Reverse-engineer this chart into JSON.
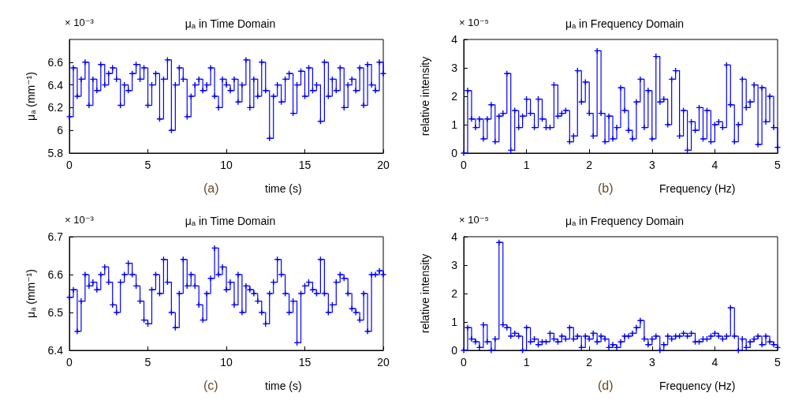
{
  "chart_data": [
    {
      "type": "step",
      "title": "μₐ in Time Domain",
      "xlabel": "time (s)",
      "ylabel": "μₐ (mm⁻¹)",
      "annotations": [
        "× 10⁻³",
        "(a)"
      ],
      "marker": "cross",
      "grid": false,
      "xlim": [
        0,
        20
      ],
      "xticks": [
        0,
        5,
        10,
        15,
        20
      ],
      "ylim": [
        5.8,
        6.8
      ],
      "yticks": [
        5.8,
        6,
        6.2,
        6.4,
        6.6
      ],
      "x": [
        0,
        0.25,
        0.5,
        0.75,
        1,
        1.25,
        1.5,
        1.75,
        2,
        2.25,
        2.5,
        2.75,
        3,
        3.25,
        3.5,
        3.75,
        4,
        4.25,
        4.5,
        4.75,
        5,
        5.25,
        5.5,
        5.75,
        6,
        6.25,
        6.5,
        6.75,
        7,
        7.25,
        7.5,
        7.75,
        8,
        8.25,
        8.5,
        8.75,
        9,
        9.25,
        9.5,
        9.75,
        10,
        10.25,
        10.5,
        10.75,
        11,
        11.25,
        11.5,
        11.75,
        12,
        12.25,
        12.5,
        12.75,
        13,
        13.25,
        13.5,
        13.75,
        14,
        14.25,
        14.5,
        14.75,
        15,
        15.25,
        15.5,
        15.75,
        16,
        16.25,
        16.5,
        16.75,
        17,
        17.25,
        17.5,
        17.75,
        18,
        18.25,
        18.5,
        18.75,
        19,
        19.25,
        19.5,
        19.75,
        20
      ],
      "series": [
        {
          "color": "#0000ff",
          "values": [
            6.12,
            6.55,
            6.3,
            6.45,
            6.6,
            6.22,
            6.45,
            6.35,
            6.58,
            6.4,
            6.5,
            6.55,
            6.45,
            6.22,
            6.4,
            6.35,
            6.5,
            6.58,
            6.45,
            6.55,
            6.22,
            6.4,
            6.5,
            6.1,
            6.45,
            6.62,
            6.0,
            6.4,
            6.55,
            6.45,
            6.12,
            6.3,
            6.4,
            6.45,
            6.35,
            6.4,
            6.55,
            6.3,
            6.2,
            6.45,
            6.4,
            6.35,
            6.45,
            6.25,
            6.4,
            6.62,
            6.2,
            6.45,
            6.3,
            6.6,
            6.35,
            5.93,
            6.3,
            6.4,
            6.25,
            6.45,
            6.5,
            6.15,
            6.4,
            6.52,
            6.3,
            6.55,
            6.35,
            6.4,
            6.08,
            6.6,
            6.3,
            6.45,
            6.35,
            6.55,
            6.2,
            6.4,
            6.45,
            6.35,
            6.55,
            6.22,
            6.58,
            6.4,
            6.35,
            6.6,
            6.5
          ]
        }
      ]
    },
    {
      "type": "step",
      "title": "μₐ in Frequency Domain",
      "xlabel": "Frequency (Hz)",
      "ylabel": "relative intensity",
      "annotations": [
        "× 10⁻⁵",
        "(b)"
      ],
      "marker": "cross",
      "grid": false,
      "xlim": [
        0,
        5
      ],
      "xticks": [
        0,
        1,
        2,
        3,
        4,
        5
      ],
      "ylim": [
        0,
        4
      ],
      "yticks": [
        0,
        1,
        2,
        3,
        4
      ],
      "x": [
        0,
        0.0625,
        0.125,
        0.1875,
        0.25,
        0.3125,
        0.375,
        0.4375,
        0.5,
        0.5625,
        0.625,
        0.6875,
        0.75,
        0.8125,
        0.875,
        0.9375,
        1,
        1.0625,
        1.125,
        1.1875,
        1.25,
        1.3125,
        1.375,
        1.4375,
        1.5,
        1.5625,
        1.625,
        1.6875,
        1.75,
        1.8125,
        1.875,
        1.9375,
        2,
        2.0625,
        2.125,
        2.1875,
        2.25,
        2.3125,
        2.375,
        2.4375,
        2.5,
        2.5625,
        2.625,
        2.6875,
        2.75,
        2.8125,
        2.875,
        2.9375,
        3,
        3.0625,
        3.125,
        3.1875,
        3.25,
        3.3125,
        3.375,
        3.4375,
        3.5,
        3.5625,
        3.625,
        3.6875,
        3.75,
        3.8125,
        3.875,
        3.9375,
        4,
        4.0625,
        4.125,
        4.1875,
        4.25,
        4.3125,
        4.375,
        4.4375,
        4.5,
        4.5625,
        4.625,
        4.6875,
        4.75,
        4.8125,
        4.875,
        4.9375,
        5
      ],
      "series": [
        {
          "color": "#0000ff",
          "values": [
            0,
            2.2,
            1.2,
            0.9,
            1.2,
            0.5,
            1.2,
            1.7,
            0.4,
            1.3,
            1.4,
            2.8,
            0.1,
            1.5,
            0.9,
            1.3,
            1.9,
            1.4,
            0.9,
            1.9,
            1.2,
            0.9,
            0.9,
            2.4,
            1.3,
            1.4,
            1.5,
            0.4,
            0.6,
            2.9,
            1.8,
            2.5,
            1.4,
            0.6,
            3.6,
            1.4,
            0.4,
            1.3,
            0.5,
            0.9,
            2.3,
            1.5,
            0.8,
            0.5,
            1.8,
            2.6,
            0.9,
            2.2,
            0.5,
            3.4,
            1.8,
            1.9,
            1.0,
            2.6,
            2.9,
            0.6,
            1.5,
            0.1,
            1.1,
            0.8,
            1.6,
            0.5,
            1.5,
            0.4,
            1.0,
            1.1,
            0.9,
            3.1,
            1.7,
            0.4,
            1.0,
            2.6,
            1.6,
            1.8,
            2.4,
            0.3,
            2.3,
            1.1,
            2.0,
            0.9,
            0.2
          ]
        }
      ]
    },
    {
      "type": "step",
      "title": "μₐ in Time Domain",
      "xlabel": "time (s)",
      "ylabel": "μₐ (mm⁻¹)",
      "annotations": [
        "× 10⁻³",
        "(c)"
      ],
      "marker": "cross",
      "grid": false,
      "xlim": [
        0,
        20
      ],
      "xticks": [
        0,
        5,
        10,
        15,
        20
      ],
      "ylim": [
        6.4,
        6.7
      ],
      "yticks": [
        6.4,
        6.5,
        6.6,
        6.7
      ],
      "x": [
        0,
        0.25,
        0.5,
        0.75,
        1,
        1.25,
        1.5,
        1.75,
        2,
        2.25,
        2.5,
        2.75,
        3,
        3.25,
        3.5,
        3.75,
        4,
        4.25,
        4.5,
        4.75,
        5,
        5.25,
        5.5,
        5.75,
        6,
        6.25,
        6.5,
        6.75,
        7,
        7.25,
        7.5,
        7.75,
        8,
        8.25,
        8.5,
        8.75,
        9,
        9.25,
        9.5,
        9.75,
        10,
        10.25,
        10.5,
        10.75,
        11,
        11.25,
        11.5,
        11.75,
        12,
        12.25,
        12.5,
        12.75,
        13,
        13.25,
        13.5,
        13.75,
        14,
        14.25,
        14.5,
        14.75,
        15,
        15.25,
        15.5,
        15.75,
        16,
        16.25,
        16.5,
        16.75,
        17,
        17.25,
        17.5,
        17.75,
        18,
        18.25,
        18.5,
        18.75,
        19,
        19.25,
        19.5,
        19.75,
        20
      ],
      "series": [
        {
          "color": "#0000ff",
          "values": [
            6.54,
            6.56,
            6.45,
            6.53,
            6.6,
            6.57,
            6.58,
            6.56,
            6.6,
            6.62,
            6.58,
            6.52,
            6.5,
            6.58,
            6.6,
            6.63,
            6.6,
            6.57,
            6.53,
            6.48,
            6.47,
            6.56,
            6.6,
            6.55,
            6.64,
            6.58,
            6.5,
            6.46,
            6.55,
            6.64,
            6.57,
            6.6,
            6.57,
            6.52,
            6.48,
            6.55,
            6.59,
            6.67,
            6.6,
            6.62,
            6.56,
            6.58,
            6.52,
            6.6,
            6.5,
            6.57,
            6.56,
            6.55,
            6.53,
            6.5,
            6.47,
            6.55,
            6.58,
            6.64,
            6.6,
            6.55,
            6.5,
            6.53,
            6.42,
            6.55,
            6.57,
            6.58,
            6.56,
            6.55,
            6.64,
            6.55,
            6.5,
            6.52,
            6.58,
            6.6,
            6.59,
            6.55,
            6.51,
            6.5,
            6.48,
            6.55,
            6.45,
            6.6,
            6.6,
            6.61,
            6.6
          ]
        }
      ]
    },
    {
      "type": "step",
      "title": "μₐ in Frequency Domain",
      "xlabel": "Frequency (Hz)",
      "ylabel": "relative intensity",
      "annotations": [
        "× 10⁻⁵",
        "(d)"
      ],
      "marker": "cross",
      "grid": false,
      "xlim": [
        0,
        5
      ],
      "xticks": [
        0,
        1,
        2,
        3,
        4,
        5
      ],
      "ylim": [
        0,
        4
      ],
      "yticks": [
        0,
        1,
        2,
        3,
        4
      ],
      "x": [
        0,
        0.0625,
        0.125,
        0.1875,
        0.25,
        0.3125,
        0.375,
        0.4375,
        0.5,
        0.5625,
        0.625,
        0.6875,
        0.75,
        0.8125,
        0.875,
        0.9375,
        1,
        1.0625,
        1.125,
        1.1875,
        1.25,
        1.3125,
        1.375,
        1.4375,
        1.5,
        1.5625,
        1.625,
        1.6875,
        1.75,
        1.8125,
        1.875,
        1.9375,
        2,
        2.0625,
        2.125,
        2.1875,
        2.25,
        2.3125,
        2.375,
        2.4375,
        2.5,
        2.5625,
        2.625,
        2.6875,
        2.75,
        2.8125,
        2.875,
        2.9375,
        3,
        3.0625,
        3.125,
        3.1875,
        3.25,
        3.3125,
        3.375,
        3.4375,
        3.5,
        3.5625,
        3.625,
        3.6875,
        3.75,
        3.8125,
        3.875,
        3.9375,
        4,
        4.0625,
        4.125,
        4.1875,
        4.25,
        4.3125,
        4.375,
        4.4375,
        4.5,
        4.5625,
        4.625,
        4.6875,
        4.75,
        4.8125,
        4.875,
        4.9375,
        5
      ],
      "series": [
        {
          "color": "#0000ff",
          "values": [
            0,
            0.8,
            0.4,
            0.3,
            0.1,
            0.9,
            0.3,
            0.0,
            0.4,
            3.8,
            0.9,
            0.8,
            0.5,
            0.6,
            0.5,
            0.0,
            0.8,
            0.3,
            0.4,
            0.2,
            0.3,
            0.3,
            0.6,
            0.4,
            0.3,
            0.5,
            0.4,
            0.8,
            0.4,
            0.5,
            0.1,
            0.5,
            0.4,
            0.6,
            0.3,
            0.5,
            0.4,
            0.1,
            0.2,
            0.1,
            0.3,
            0.5,
            0.5,
            0.6,
            0.8,
            1.05,
            0.4,
            0.2,
            0.4,
            0.5,
            0.0,
            0.2,
            0.5,
            0.4,
            0.5,
            0.5,
            0.6,
            0.5,
            0.6,
            0.3,
            0.3,
            0.4,
            0.4,
            0.5,
            0.6,
            0.5,
            0.4,
            0.5,
            1.5,
            0.5,
            0.0,
            0.4,
            0.1,
            0.3,
            0.4,
            0.5,
            0.2,
            0.5,
            0.3,
            0.2,
            0.1
          ]
        }
      ]
    }
  ]
}
